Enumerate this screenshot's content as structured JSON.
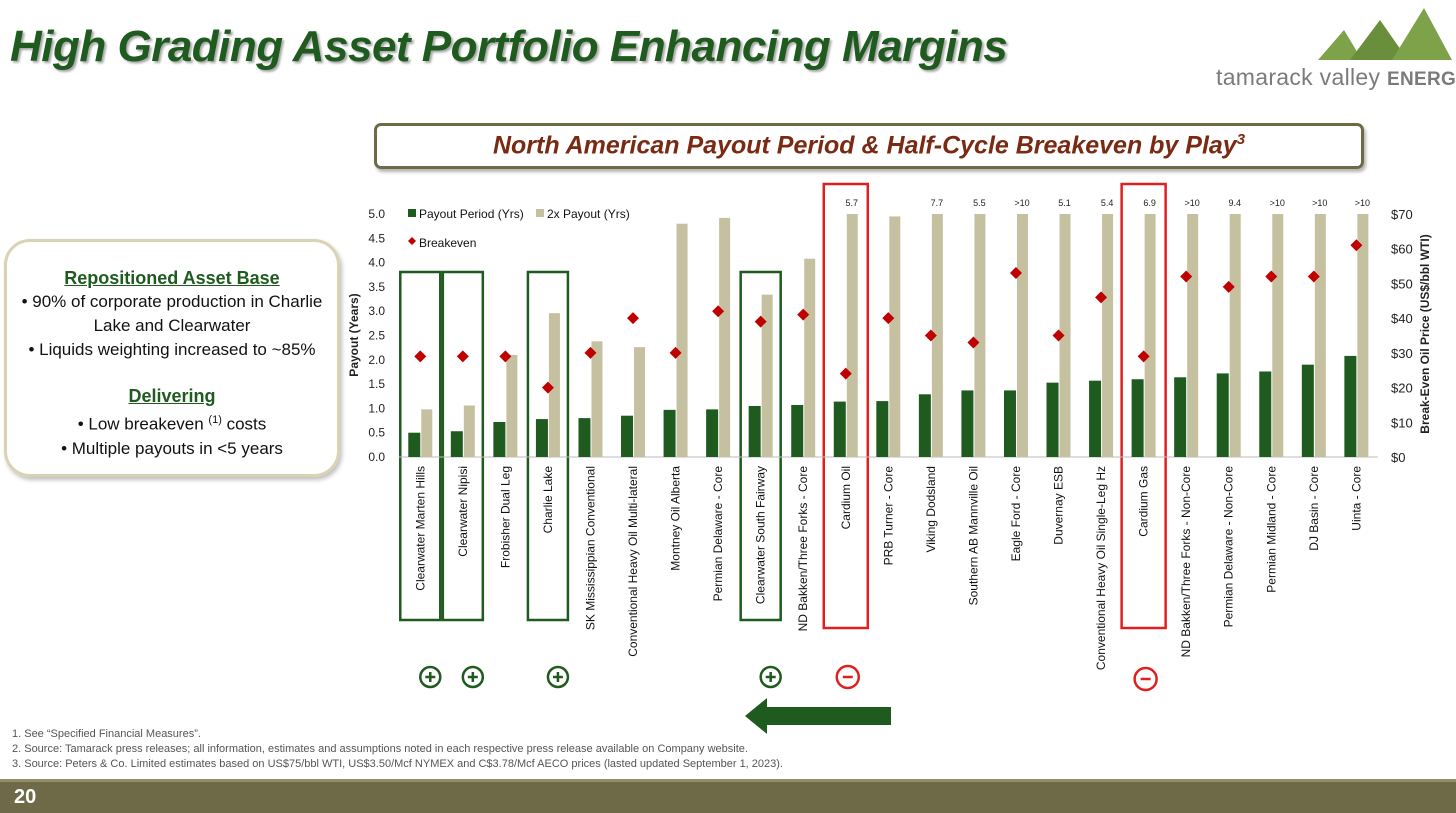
{
  "page": {
    "title": "High Grading Asset Portfolio Enhancing Margins",
    "page_number": "20"
  },
  "logo": {
    "brand": "tamarack valley",
    "suffix": "ENERGY",
    "colors": [
      "#7ea24a",
      "#6a8f3c"
    ]
  },
  "chart_box": {
    "title": "North American Payout Period & Half-Cycle Breakeven by Play",
    "superscript": "3"
  },
  "side_panel": {
    "heading1": "Repositioned Asset Base",
    "bullet1": "• 90% of corporate production in Charlie",
    "bullet1_cont": "Lake and Clearwater",
    "bullet2": "• Liquids weighting increased to ~85%",
    "heading2": "Delivering",
    "bullet3_pre": "• Low breakeven ",
    "bullet3_sup": "(1)",
    "bullet3_post": " costs",
    "bullet4": "• Multiple payouts in <5 years"
  },
  "footnotes": [
    "1.  See “Specified Financial Measures”.",
    "2.  Source: Tamarack press releases; all information, estimates and assumptions noted in each respective press release available on Company website.",
    "3.  Source: Peters & Co. Limited estimates based on US$75/bbl WTI, US$3.50/Mcf NYMEX and C$3.78/Mcf AECO prices (lasted updated September 1, 2023)."
  ],
  "colors": {
    "payout": "#1f5a1e",
    "double_payout": "#c5c0a0",
    "breakeven": "#c00000",
    "highlight_green": "#1f5a1e",
    "highlight_red": "#e02020"
  },
  "chart_data": {
    "type": "bar",
    "title": "North American Payout Period & Half-Cycle Breakeven by Play",
    "ylabel": "Payout (Years)",
    "y2label": "Break-Even Oil Price (US$/bbl WTI)",
    "ylim": [
      0,
      5
    ],
    "y2lim": [
      0,
      70
    ],
    "yticks": [
      "0.0",
      "0.5",
      "1.0",
      "1.5",
      "2.0",
      "2.5",
      "3.0",
      "3.5",
      "4.0",
      "4.5",
      "5.0"
    ],
    "y2ticks": [
      "$0",
      "$10",
      "$20",
      "$30",
      "$40",
      "$50",
      "$60",
      "$70"
    ],
    "legend": {
      "payout": "Payout Period (Yrs)",
      "double": "2x Payout (Yrs)",
      "breakeven": "Breakeven"
    },
    "categories": [
      "Clearwater Marten Hills",
      "Clearwater Nipisi",
      "Frobisher Dual Leg",
      "Charlie Lake",
      "SK Mississippian Conventional",
      "Conventional Heavy Oil Multi-lateral",
      "Montney Oil Alberta",
      "Permian Delaware - Core",
      "Clearwater South Fairway",
      "ND Bakken/Three Forks - Core",
      "Cardium Oil",
      "PRB Turner - Core",
      "Viking Dodsland",
      "Southern AB Mannville Oil",
      "Eagle Ford - Core",
      "Duvernay ESB",
      "Conventional Heavy Oil Single-Leg Hz",
      "Cardium Gas",
      "ND Bakken/Three Forks - Non-Core",
      "Permian Delaware - Non-Core",
      "Permian Midland - Core",
      "DJ Basin - Core",
      "Uinta - Core"
    ],
    "series": [
      {
        "name": "Payout Period (Yrs)",
        "values": [
          0.5,
          0.53,
          0.72,
          0.78,
          0.8,
          0.85,
          0.97,
          0.98,
          1.05,
          1.07,
          1.14,
          1.15,
          1.29,
          1.37,
          1.37,
          1.53,
          1.57,
          1.6,
          1.64,
          1.72,
          1.76,
          1.9,
          2.08
        ]
      },
      {
        "name": "2x Payout (Yrs)",
        "values": [
          0.98,
          1.06,
          2.1,
          2.96,
          2.38,
          2.26,
          4.8,
          4.92,
          3.34,
          4.08,
          5.7,
          4.95,
          7.7,
          5.5,
          ">10",
          5.1,
          5.4,
          6.9,
          ">10",
          9.4,
          ">10",
          ">10",
          ">10"
        ]
      },
      {
        "name": "Breakeven",
        "values": [
          29,
          29,
          29,
          20,
          30,
          40,
          30,
          42,
          39,
          41,
          24,
          40,
          35,
          33,
          53,
          35,
          46,
          29,
          52,
          49,
          52,
          52,
          61
        ]
      }
    ],
    "overflow_labels": [
      "5.7",
      "7.7",
      "5.5",
      ">10",
      "5.1",
      "5.4",
      "6.9",
      ">10",
      "9.4",
      ">10",
      ">10",
      ">10"
    ],
    "highlights": {
      "positive": [
        "Clearwater Marten Hills",
        "Clearwater Nipisi",
        "Charlie Lake",
        "Clearwater South Fairway"
      ],
      "negative": [
        "Cardium Oil",
        "Cardium Gas"
      ]
    }
  }
}
